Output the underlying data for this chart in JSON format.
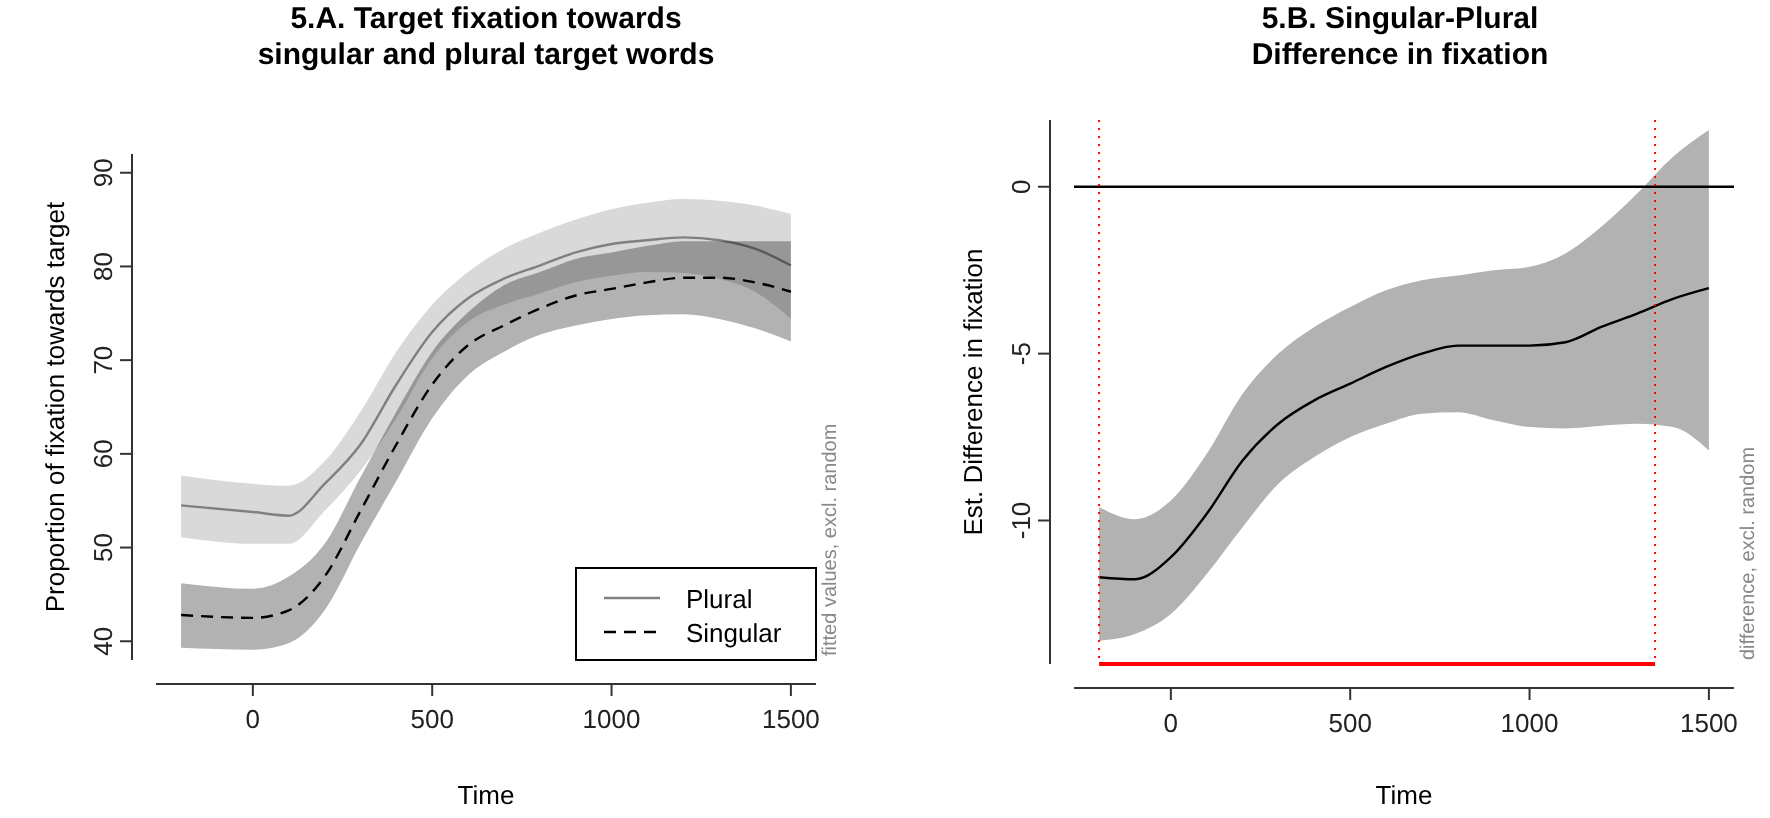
{
  "chart_data": [
    {
      "type": "line",
      "title": "5.A. Target fixation towards\nsingular and plural target words",
      "xlabel": "Time",
      "ylabel": "Proportion of fixation towards target",
      "x": [
        -200,
        0,
        100,
        200,
        300,
        400,
        500,
        600,
        700,
        800,
        900,
        1000,
        1100,
        1200,
        1300,
        1400,
        1500
      ],
      "series": [
        {
          "name": "Plural",
          "color": "#808080",
          "line_style": "solid",
          "values": [
            54.5,
            53.8,
            53.4,
            56.8,
            61,
            67.4,
            73,
            76.6,
            78.7,
            80.1,
            81.5,
            82.4,
            82.8,
            83.1,
            82.8,
            81.9,
            80.1
          ],
          "upper": [
            57.7,
            56.8,
            56.6,
            59.2,
            64.5,
            70.9,
            75.9,
            79.4,
            81.9,
            83.6,
            85,
            86.1,
            86.8,
            87.2,
            87,
            86.5,
            85.6
          ],
          "lower": [
            51.1,
            50.4,
            50.4,
            53.9,
            58.2,
            63.8,
            70.2,
            74.1,
            75.9,
            77.1,
            78.3,
            79,
            79.4,
            79.3,
            78.7,
            77.3,
            74.4
          ]
        },
        {
          "name": "Singular",
          "color": "#000000",
          "line_style": "dashed",
          "values": [
            42.8,
            42.5,
            43.3,
            46.9,
            53.9,
            61,
            67.4,
            71.6,
            73.7,
            75.5,
            76.9,
            77.6,
            78.3,
            78.8,
            78.8,
            78.3,
            77.3
          ],
          "upper": [
            46.2,
            45.6,
            46.9,
            50.4,
            57.5,
            64.5,
            70.9,
            75.1,
            78,
            79.4,
            80.8,
            81.5,
            82.2,
            82.7,
            82.7,
            82.7,
            82.7
          ],
          "lower": [
            39.3,
            39.1,
            39.8,
            43.3,
            50.4,
            57.1,
            63.8,
            68.4,
            70.9,
            72.7,
            73.7,
            74.4,
            74.8,
            74.9,
            74.4,
            73.4,
            72
          ]
        }
      ],
      "xlim": [
        -270,
        1570
      ],
      "xticks": [
        0,
        500,
        1000,
        1500
      ],
      "ylim": [
        38,
        92
      ],
      "yticks": [
        40,
        50,
        60,
        70,
        80,
        90
      ],
      "legend": "bottom right",
      "grid": false,
      "annotations": [
        "fitted values, excl. random"
      ]
    },
    {
      "type": "line",
      "title": "5.B. Singular-Plural\nDifference in fixation",
      "xlabel": "Time",
      "ylabel": "Est. Difference in fixation",
      "x": [
        -200,
        -100,
        0,
        100,
        200,
        300,
        400,
        500,
        600,
        700,
        800,
        900,
        1000,
        1100,
        1200,
        1300,
        1400,
        1500
      ],
      "series": [
        {
          "color": "#000000",
          "line_style": "solid",
          "values": [
            -11.7,
            -11.76,
            -11.1,
            -9.8,
            -8.2,
            -7.1,
            -6.4,
            -5.9,
            -5.4,
            -5,
            -4.76,
            -4.76,
            -4.76,
            -4.66,
            -4.2,
            -3.8,
            -3.36,
            -3.04
          ],
          "upper": [
            -9.6,
            -9.96,
            -9.4,
            -8,
            -6.2,
            -5,
            -4.2,
            -3.6,
            -3.1,
            -2.8,
            -2.66,
            -2.5,
            -2.4,
            -2,
            -1.2,
            -0.2,
            0.9,
            1.7
          ],
          "lower": [
            -13.6,
            -13.4,
            -12.8,
            -11.6,
            -10.2,
            -8.9,
            -8.1,
            -7.5,
            -7.1,
            -6.8,
            -6.76,
            -7,
            -7.2,
            -7.24,
            -7.16,
            -7.1,
            -7.2,
            -7.9
          ]
        }
      ],
      "xlim": [
        -270,
        1570
      ],
      "xticks": [
        0,
        500,
        1000,
        1500
      ],
      "ylim": [
        -14.3,
        2
      ],
      "yticks": [
        -10,
        -5,
        0
      ],
      "grid": false,
      "legend": false,
      "ref_lines": [
        {
          "axis": "y",
          "value": 0,
          "color": "#000000",
          "line_style": "solid"
        },
        {
          "axis": "x",
          "value": -200,
          "color": "#ff0000",
          "line_style": "dotted"
        },
        {
          "axis": "x",
          "value": 1350,
          "color": "#ff0000",
          "line_style": "dotted"
        }
      ],
      "annotations": [
        "difference, excl. random"
      ]
    }
  ]
}
